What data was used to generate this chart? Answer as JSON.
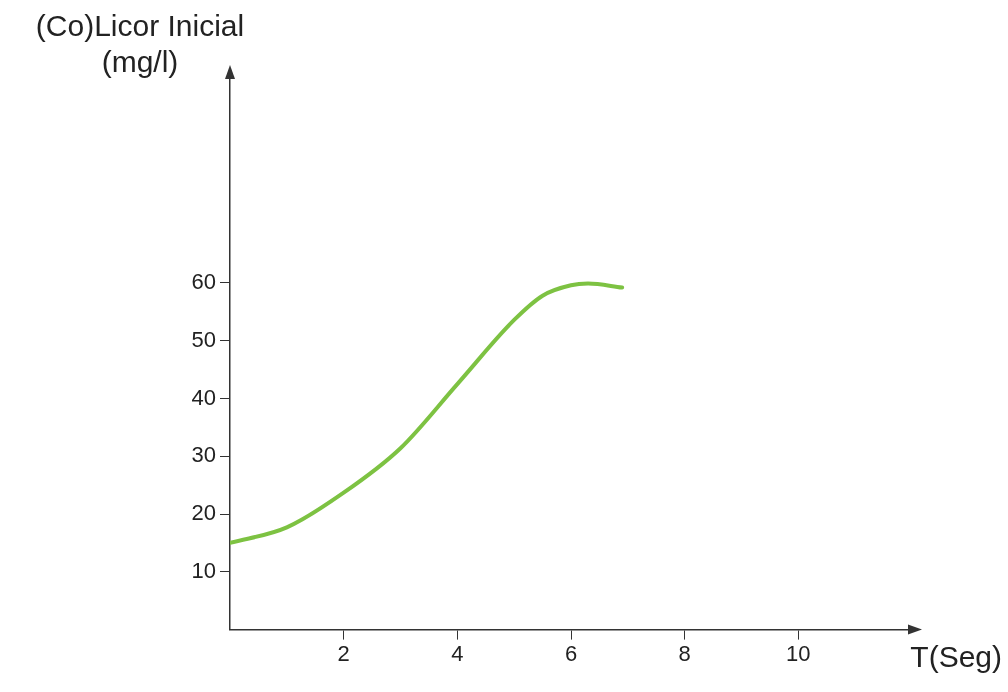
{
  "chart_data": {
    "type": "line",
    "xlabel": "T(Seg)",
    "ylabel": "(Co)Licor Inicial\n(mg/l)",
    "x": [
      0,
      1,
      2,
      3,
      4,
      5,
      5.5,
      6,
      6.3,
      6.9
    ],
    "series": [
      {
        "color": "#7dc242",
        "values": [
          15,
          17.7,
          23.7,
          31.4,
          42.5,
          53.6,
          57.8,
          59.6,
          59.9,
          59.2
        ]
      }
    ],
    "xlim": [
      0,
      12
    ],
    "xticks": [
      2,
      4,
      6,
      8,
      10
    ],
    "ylim": [
      0,
      96
    ],
    "yticks": [
      10,
      20,
      30,
      40,
      50,
      60
    ],
    "grid": false,
    "legend": false,
    "marker": "none",
    "line_style": "solid"
  }
}
